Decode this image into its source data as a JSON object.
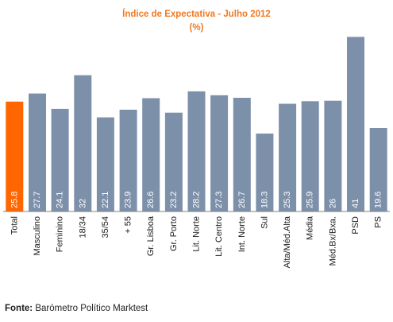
{
  "chart_data": {
    "type": "bar",
    "title": "Índice de Expectativa - Julho 2012",
    "subtitle": "(%)",
    "categories": [
      "Total",
      "Masculino",
      "Feminino",
      "18/34",
      "35/54",
      "+ 55",
      "Gr. Lisboa",
      "Gr. Porto",
      "Lit. Norte",
      "Lit. Centro",
      "Int. Norte",
      "Sul",
      "Alta/Méd.Alta",
      "Média",
      "Méd.Bx/Bxa.",
      "PSD",
      "PS"
    ],
    "values": [
      25.8,
      27.7,
      24.1,
      32,
      22.1,
      23.9,
      26.6,
      23.2,
      28.2,
      27.3,
      26.7,
      18.3,
      25.3,
      25.9,
      26,
      41,
      19.6
    ],
    "value_labels": [
      "25.8",
      "27.7",
      "24.1",
      "32",
      "22.1",
      "23.9",
      "26.6",
      "23.2",
      "28.2",
      "27.3",
      "26.7",
      "18.3",
      "25.3",
      "25.9",
      "26",
      "41",
      "19.6"
    ],
    "highlight_index": 0,
    "colors": {
      "highlight": "#FF6600",
      "bar": "#7D90AA",
      "axis": "#808080",
      "title": "#F07920"
    },
    "xlabel": "",
    "ylabel": "",
    "ylim": [
      0,
      42
    ],
    "grid": false,
    "legend": "none"
  },
  "source": {
    "label": "Fonte:",
    "text": "Barómetro Político Marktest"
  }
}
